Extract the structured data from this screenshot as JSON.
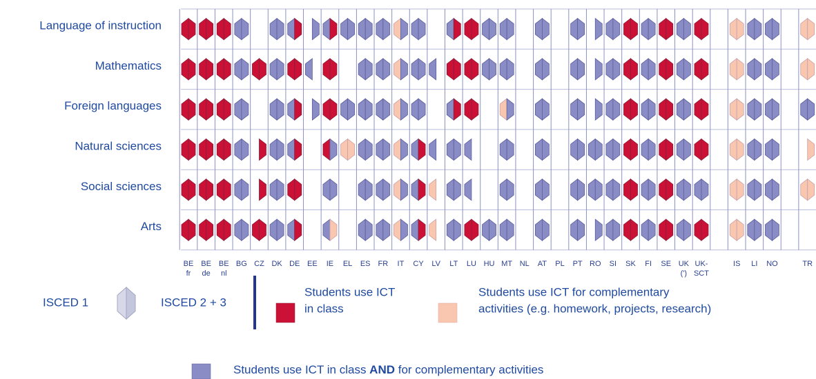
{
  "rows": [
    "Language of instruction",
    "Mathematics",
    "Foreign languages",
    "Natural sciences",
    "Social sciences",
    "Arts"
  ],
  "columns": [
    [
      "BE",
      "fr"
    ],
    [
      "BE",
      "de"
    ],
    [
      "BE",
      "nl"
    ],
    [
      "BG"
    ],
    [
      "CZ"
    ],
    [
      "DK"
    ],
    [
      "DE"
    ],
    [
      "EE"
    ],
    [
      "IE"
    ],
    [
      "EL"
    ],
    [
      "ES"
    ],
    [
      "FR"
    ],
    [
      "IT"
    ],
    [
      "CY"
    ],
    [
      "LV"
    ],
    [
      "LT"
    ],
    [
      "LU"
    ],
    [
      "HU"
    ],
    [
      "MT"
    ],
    [
      "NL"
    ],
    [
      "AT"
    ],
    [
      "PL"
    ],
    [
      "PT"
    ],
    [
      "RO"
    ],
    [
      "SI"
    ],
    [
      "SK"
    ],
    [
      "FI"
    ],
    [
      "SE"
    ],
    [
      "UK",
      "(')"
    ],
    [
      "UK-",
      "SCT"
    ],
    [
      "IS"
    ],
    [
      "LI"
    ],
    [
      "NO"
    ],
    [
      "TR"
    ]
  ],
  "isced": [
    "ISCED 1",
    "ISCED 2 + 3"
  ],
  "legend": [
    {
      "label": [
        "Students use ICT",
        "in class"
      ],
      "color": "#cc1136"
    },
    {
      "label": [
        "Students use ICT for complementary",
        "activities (e.g. homework, projects, research)"
      ],
      "color": "#f9c6b0"
    },
    {
      "label": [
        "Students use ICT in class ",
        "AND",
        " for complementary activities"
      ],
      "color": "#8a8cc6"
    }
  ],
  "cells": [
    [
      [
        0,
        0
      ],
      [
        0,
        0
      ],
      [
        0,
        0
      ],
      [
        2,
        2
      ],
      [
        null,
        null
      ],
      [
        2,
        2
      ],
      [
        2,
        0
      ],
      [
        null,
        2
      ],
      [
        2,
        0
      ],
      [
        2,
        2
      ],
      [
        2,
        2
      ],
      [
        2,
        2
      ],
      [
        1,
        2
      ],
      [
        2,
        2
      ],
      [
        null,
        null
      ],
      [
        2,
        0
      ],
      [
        0,
        0
      ],
      [
        2,
        2
      ],
      [
        2,
        2
      ],
      [
        null,
        null
      ],
      [
        2,
        2
      ],
      [
        null,
        null
      ],
      [
        2,
        2
      ],
      [
        null,
        2
      ],
      [
        2,
        2
      ],
      [
        0,
        0
      ],
      [
        2,
        2
      ],
      [
        0,
        0
      ],
      [
        2,
        2
      ],
      [
        0,
        0
      ],
      [
        1,
        1
      ],
      [
        2,
        2
      ],
      [
        2,
        2
      ],
      [
        1,
        1
      ]
    ],
    [
      [
        0,
        0
      ],
      [
        0,
        0
      ],
      [
        0,
        0
      ],
      [
        2,
        2
      ],
      [
        0,
        0
      ],
      [
        2,
        2
      ],
      [
        0,
        0
      ],
      [
        2,
        null
      ],
      [
        0,
        0
      ],
      [
        null,
        null
      ],
      [
        2,
        2
      ],
      [
        2,
        2
      ],
      [
        1,
        2
      ],
      [
        2,
        2
      ],
      [
        2,
        null
      ],
      [
        0,
        0
      ],
      [
        0,
        0
      ],
      [
        2,
        2
      ],
      [
        2,
        2
      ],
      [
        null,
        null
      ],
      [
        2,
        2
      ],
      [
        null,
        null
      ],
      [
        2,
        2
      ],
      [
        null,
        2
      ],
      [
        2,
        2
      ],
      [
        0,
        0
      ],
      [
        2,
        2
      ],
      [
        0,
        0
      ],
      [
        2,
        2
      ],
      [
        0,
        0
      ],
      [
        1,
        1
      ],
      [
        2,
        2
      ],
      [
        2,
        2
      ],
      [
        1,
        1
      ]
    ],
    [
      [
        0,
        0
      ],
      [
        0,
        0
      ],
      [
        0,
        0
      ],
      [
        2,
        2
      ],
      [
        null,
        null
      ],
      [
        2,
        2
      ],
      [
        2,
        0
      ],
      [
        null,
        2
      ],
      [
        0,
        0
      ],
      [
        2,
        2
      ],
      [
        2,
        2
      ],
      [
        2,
        2
      ],
      [
        1,
        2
      ],
      [
        2,
        2
      ],
      [
        null,
        null
      ],
      [
        2,
        0
      ],
      [
        0,
        0
      ],
      [
        null,
        null
      ],
      [
        1,
        2
      ],
      [
        null,
        null
      ],
      [
        2,
        2
      ],
      [
        null,
        null
      ],
      [
        2,
        2
      ],
      [
        null,
        2
      ],
      [
        2,
        2
      ],
      [
        0,
        0
      ],
      [
        2,
        2
      ],
      [
        0,
        0
      ],
      [
        2,
        2
      ],
      [
        0,
        0
      ],
      [
        1,
        1
      ],
      [
        2,
        2
      ],
      [
        2,
        2
      ],
      [
        2,
        2
      ]
    ],
    [
      [
        0,
        0
      ],
      [
        0,
        0
      ],
      [
        0,
        0
      ],
      [
        2,
        2
      ],
      [
        null,
        0
      ],
      [
        2,
        2
      ],
      [
        2,
        0
      ],
      [
        null,
        null
      ],
      [
        0,
        2
      ],
      [
        1,
        1
      ],
      [
        2,
        2
      ],
      [
        2,
        2
      ],
      [
        1,
        2
      ],
      [
        2,
        0
      ],
      [
        2,
        null
      ],
      [
        2,
        2
      ],
      [
        2,
        null
      ],
      [
        null,
        null
      ],
      [
        2,
        2
      ],
      [
        null,
        null
      ],
      [
        2,
        2
      ],
      [
        null,
        null
      ],
      [
        2,
        2
      ],
      [
        2,
        2
      ],
      [
        2,
        2
      ],
      [
        0,
        0
      ],
      [
        2,
        2
      ],
      [
        0,
        0
      ],
      [
        2,
        2
      ],
      [
        0,
        0
      ],
      [
        1,
        1
      ],
      [
        2,
        2
      ],
      [
        2,
        2
      ],
      [
        null,
        1
      ]
    ],
    [
      [
        0,
        0
      ],
      [
        0,
        0
      ],
      [
        0,
        0
      ],
      [
        2,
        2
      ],
      [
        null,
        0
      ],
      [
        2,
        2
      ],
      [
        0,
        0
      ],
      [
        null,
        null
      ],
      [
        2,
        2
      ],
      [
        null,
        null
      ],
      [
        2,
        2
      ],
      [
        2,
        2
      ],
      [
        1,
        2
      ],
      [
        2,
        0
      ],
      [
        1,
        null
      ],
      [
        2,
        2
      ],
      [
        2,
        null
      ],
      [
        null,
        null
      ],
      [
        2,
        2
      ],
      [
        null,
        null
      ],
      [
        2,
        2
      ],
      [
        null,
        null
      ],
      [
        2,
        2
      ],
      [
        2,
        2
      ],
      [
        2,
        2
      ],
      [
        0,
        0
      ],
      [
        2,
        2
      ],
      [
        0,
        0
      ],
      [
        2,
        2
      ],
      [
        2,
        2
      ],
      [
        1,
        1
      ],
      [
        2,
        2
      ],
      [
        2,
        2
      ],
      [
        1,
        1
      ]
    ],
    [
      [
        0,
        0
      ],
      [
        0,
        0
      ],
      [
        0,
        0
      ],
      [
        2,
        2
      ],
      [
        0,
        0
      ],
      [
        2,
        2
      ],
      [
        2,
        0
      ],
      [
        null,
        null
      ],
      [
        2,
        1
      ],
      [
        null,
        null
      ],
      [
        2,
        2
      ],
      [
        2,
        2
      ],
      [
        1,
        2
      ],
      [
        2,
        0
      ],
      [
        1,
        null
      ],
      [
        2,
        2
      ],
      [
        0,
        0
      ],
      [
        2,
        2
      ],
      [
        2,
        2
      ],
      [
        null,
        null
      ],
      [
        2,
        2
      ],
      [
        null,
        null
      ],
      [
        2,
        2
      ],
      [
        null,
        2
      ],
      [
        2,
        2
      ],
      [
        0,
        0
      ],
      [
        2,
        2
      ],
      [
        0,
        0
      ],
      [
        2,
        2
      ],
      [
        0,
        0
      ],
      [
        1,
        1
      ],
      [
        2,
        2
      ],
      [
        2,
        2
      ],
      [
        null,
        null
      ]
    ]
  ]
}
